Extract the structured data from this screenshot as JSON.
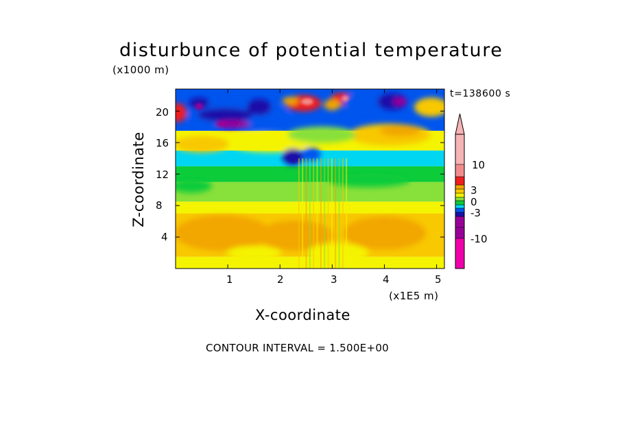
{
  "chart_data": {
    "type": "heatmap",
    "title": "disturbunce of potential temperature",
    "z_units": "(x1000 m)",
    "x_units": "(x1E5 m)",
    "time_label": "t=138600 s",
    "xlabel": "X-coordinate",
    "ylabel": "Z-coordinate",
    "footer": "CONTOUR INTERVAL = 1.500E+00",
    "xlim": [
      0,
      5.15
    ],
    "ylim": [
      0,
      22.8
    ],
    "x_ticks": [
      "1",
      "2",
      "3",
      "4",
      "5"
    ],
    "x_tick_values": [
      1,
      2,
      3,
      4,
      5
    ],
    "y_ticks": [
      "4",
      "8",
      "12",
      "16",
      "20"
    ],
    "y_tick_values": [
      4,
      8,
      12,
      16,
      20
    ],
    "colorbar": {
      "levels": [
        -15,
        -13.5,
        -12,
        -10.5,
        -9,
        -7.5,
        -6,
        -4.5,
        -3,
        -1.5,
        0,
        1.5,
        3,
        4.5,
        6,
        7.5,
        9,
        10.5,
        12,
        13.5,
        15
      ],
      "labels": [
        "10",
        "3",
        "0",
        "-3",
        "-10"
      ],
      "label_values": [
        10,
        3,
        0,
        -3,
        -10
      ],
      "colors": {
        "magenta": "#ee00aa",
        "purple": "#990099",
        "dark_blue": "#1a10a8",
        "blue": "#0055ee",
        "cyan": "#00d6f2",
        "green": "#0ccc3a",
        "light_green": "#88e03a",
        "yellow": "#f4f400",
        "light_orange": "#f8c800",
        "orange": "#f2a600",
        "red": "#ee1f1f",
        "salmon": "#f28c8c",
        "pink": "#f6b4b4"
      }
    },
    "field_bands": [
      {
        "z_range": [
          0,
          1.5
        ],
        "value": 0.5,
        "color": "yellow"
      },
      {
        "z_range": [
          1.5,
          7
        ],
        "value": 2.5,
        "color": "light_orange"
      },
      {
        "z_range": [
          7,
          8.5
        ],
        "value": 1,
        "color": "yellow"
      },
      {
        "z_range": [
          8.5,
          11
        ],
        "value": 0,
        "color": "light_green"
      },
      {
        "z_range": [
          11,
          13
        ],
        "value": -1,
        "color": "green"
      },
      {
        "z_range": [
          13,
          15
        ],
        "value": -2,
        "color": "cyan"
      },
      {
        "z_range": [
          15,
          17.5
        ],
        "value": 1,
        "color": "yellow"
      },
      {
        "z_range": [
          17.5,
          22.8
        ],
        "value": -3,
        "color": "blue"
      }
    ]
  }
}
